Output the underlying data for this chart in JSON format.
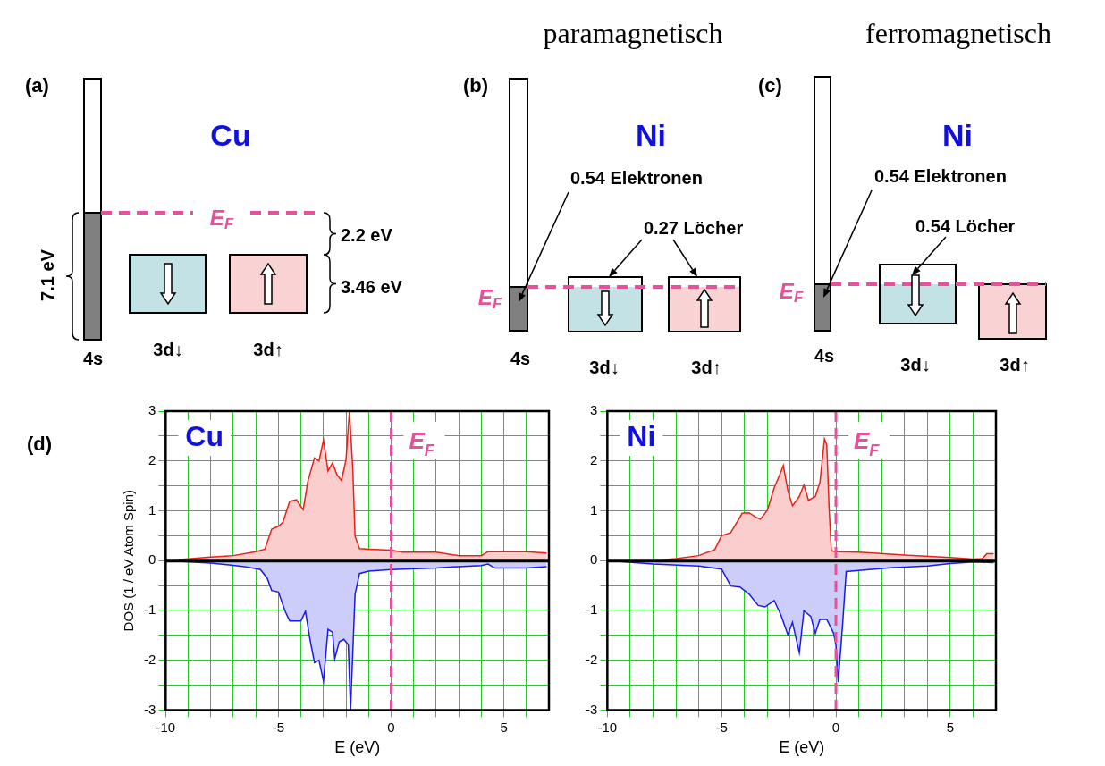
{
  "chart_data": [
    {
      "type": "other",
      "title": "(a)",
      "annotations": [
        "Cu",
        "E$_{F}$",
        "2.2 eV",
        "3.46 eV",
        "7.1 eV",
        "4s",
        "3d↓",
        "3d↑"
      ]
    },
    {
      "type": "other",
      "title": "(b)",
      "subtitle": "paramagnetisch",
      "annotations": [
        "Ni",
        "E$_{F}$",
        "0.54 Elektronen",
        "0.27 Löcher",
        "4s",
        "3d↓",
        "3d↑"
      ]
    },
    {
      "type": "other",
      "title": "(c)",
      "subtitle": "ferromagnetisch",
      "annotations": [
        "Ni",
        "E$_{F}$",
        "0.54 Elektronen",
        "0.54 Löcher",
        "4s",
        "3d↓",
        "3d↑"
      ]
    },
    {
      "type": "area",
      "title": "(d)",
      "xlabel": "E (eV)",
      "ylabel": "DOS (1 / eV Atom Spin)",
      "annotations": [
        "Cu"
      ],
      "xlim": [
        -10,
        7
      ],
      "ylim": [
        -3,
        3
      ],
      "xticks": [
        -10,
        {
          "value": -9,
          "label": null
        },
        {
          "value": -8,
          "label": null
        },
        {
          "value": -7,
          "label": null
        },
        {
          "value": -6,
          "label": null
        },
        -5,
        {
          "value": -4,
          "label": null
        },
        {
          "value": -3,
          "label": null
        },
        {
          "value": -2,
          "label": null
        },
        {
          "value": -1,
          "label": null
        },
        0,
        {
          "value": 1,
          "label": null
        },
        {
          "value": 2,
          "label": null
        },
        {
          "value": 3,
          "label": null
        },
        {
          "value": 4,
          "label": null
        },
        5,
        {
          "value": 6,
          "label": null
        }
      ],
      "yticks": [
        -3,
        {
          "value": -2.5,
          "label": null
        },
        -2,
        {
          "value": -1.5,
          "label": null
        },
        -1,
        {
          "value": -0.5,
          "label": null
        },
        0,
        {
          "value": 0.5,
          "label": null
        },
        1,
        {
          "value": 1.5,
          "label": null
        },
        2,
        {
          "value": 2.5,
          "label": null
        },
        3
      ],
      "grid": true,
      "ref_lines": [
        {
          "axis": "y",
          "value": 0,
          "color": "#000000"
        },
        {
          "axis": "x",
          "value": 0,
          "label": "E$_{F}$",
          "color": "#e8509a",
          "line_style": "dashed"
        }
      ],
      "series": [
        {
          "color": "#e8201a",
          "x": [
            -10,
            -8,
            -7,
            -6,
            -5.6,
            -5.3,
            -5,
            -4.8,
            -4.5,
            -4.2,
            -3.9,
            -3.7,
            -3.4,
            -3.2,
            -3,
            -2.8,
            -2.6,
            -2.4,
            -2.2,
            -2,
            -1.85,
            -1.7,
            -1.6,
            -1.4,
            -1,
            0,
            0.5,
            2,
            3,
            4,
            4.3,
            5,
            6,
            6.9
          ],
          "values": [
            0,
            0.07,
            0.1,
            0.18,
            0.23,
            0.63,
            0.69,
            0.77,
            1.19,
            1.22,
            1.02,
            1.58,
            2.06,
            2,
            2.42,
            1.8,
            1.96,
            1.72,
            1.61,
            2.03,
            3,
            1.84,
            0.49,
            0.24,
            0.23,
            0.21,
            0.17,
            0.17,
            0.1,
            0.1,
            0.18,
            0.18,
            0.18,
            0.15
          ]
        },
        {
          "color": "#1a1ae8",
          "x": [
            -10,
            -8,
            -6.5,
            -5.8,
            -5.5,
            -5.3,
            -5,
            -4.7,
            -4.5,
            -4,
            -3.8,
            -3.6,
            -3.4,
            -3.2,
            -3,
            -2.8,
            -2.6,
            -2.5,
            -2.3,
            -2.1,
            -1.9,
            -1.8,
            -1.6,
            -1.4,
            -1,
            0,
            2,
            3,
            4,
            4.3,
            4.6,
            6,
            6.9
          ],
          "values": [
            0,
            -0.05,
            -0.12,
            -0.18,
            -0.35,
            -0.6,
            -0.63,
            -1.02,
            -1.21,
            -1.21,
            -1.02,
            -1.58,
            -2.05,
            -2,
            -2.42,
            -1.38,
            -1.44,
            -1.97,
            -1.63,
            -1.58,
            -1.69,
            -3,
            -0.68,
            -0.26,
            -0.21,
            -0.18,
            -0.15,
            -0.12,
            -0.1,
            -0.07,
            -0.15,
            -0.15,
            -0.12
          ]
        }
      ]
    },
    {
      "type": "area",
      "xlabel": "E (eV)",
      "annotations": [
        "Ni"
      ],
      "xlim": [
        -10,
        7
      ],
      "ylim": [
        -3,
        3
      ],
      "xticks": [
        -10,
        {
          "value": -9,
          "label": null
        },
        {
          "value": -8,
          "label": null
        },
        {
          "value": -7,
          "label": null
        },
        {
          "value": -6,
          "label": null
        },
        -5,
        {
          "value": -4,
          "label": null
        },
        {
          "value": -3,
          "label": null
        },
        {
          "value": -2,
          "label": null
        },
        {
          "value": -1,
          "label": null
        },
        0,
        {
          "value": 1,
          "label": null
        },
        {
          "value": 2,
          "label": null
        },
        {
          "value": 3,
          "label": null
        },
        {
          "value": 4,
          "label": null
        },
        5,
        {
          "value": 6,
          "label": null
        }
      ],
      "yticks": [
        -3,
        {
          "value": -2.5,
          "label": null
        },
        -2,
        {
          "value": -1.5,
          "label": null
        },
        -1,
        {
          "value": -0.5,
          "label": null
        },
        0,
        {
          "value": 0.5,
          "label": null
        },
        1,
        {
          "value": 1.5,
          "label": null
        },
        2,
        {
          "value": 2.5,
          "label": null
        },
        3
      ],
      "grid": true,
      "ref_lines": [
        {
          "axis": "y",
          "value": 0,
          "color": "#000000"
        },
        {
          "axis": "x",
          "value": 0,
          "label": "E$_{F}$",
          "color": "#e8509a",
          "line_style": "dashed"
        }
      ],
      "series": [
        {
          "color": "#e8201a",
          "x": [
            -10,
            -8,
            -7,
            -6,
            -5.3,
            -5,
            -4.6,
            -4.1,
            -3.8,
            -3.5,
            -3.3,
            -3,
            -2.7,
            -2.4,
            -2.3,
            -2.1,
            -1.9,
            -1.6,
            -1.4,
            -1.2,
            -0.9,
            -0.7,
            -0.5,
            -0.4,
            -0.3,
            -0.2,
            0,
            1,
            3,
            5,
            6,
            6.4,
            6.6,
            6.9
          ],
          "values": [
            0,
            0,
            0.04,
            0.1,
            0.22,
            0.5,
            0.56,
            0.95,
            0.96,
            0.87,
            0.83,
            1.01,
            1.46,
            1.79,
            1.91,
            1.4,
            1.1,
            1.29,
            1.52,
            1.21,
            1.29,
            1.57,
            2.44,
            2.33,
            1.07,
            0.2,
            0.18,
            0.17,
            0.11,
            0.06,
            0.03,
            0.04,
            0.14,
            0.14
          ]
        },
        {
          "color": "#1a1ae8",
          "x": [
            -10,
            -8,
            -6,
            -5,
            -4.6,
            -4.2,
            -3.8,
            -3.4,
            -3.1,
            -2.7,
            -2.4,
            -2.1,
            -1.9,
            -1.6,
            -1.4,
            -1.1,
            -0.9,
            -0.7,
            -0.4,
            -0.1,
            0,
            0.1,
            0.3,
            0.45,
            1,
            2.5,
            4,
            5,
            6,
            6.9
          ],
          "values": [
            0,
            -0.07,
            -0.11,
            -0.17,
            -0.51,
            -0.53,
            -0.67,
            -0.9,
            -0.93,
            -0.8,
            -1.1,
            -1.49,
            -1.24,
            -1.85,
            -1.01,
            -1.12,
            -1.46,
            -1.18,
            -1.18,
            -1.46,
            -1.69,
            -2.44,
            -1.24,
            -0.22,
            -0.2,
            -0.14,
            -0.11,
            -0.06,
            -0.03,
            -0.04
          ]
        }
      ]
    }
  ]
}
